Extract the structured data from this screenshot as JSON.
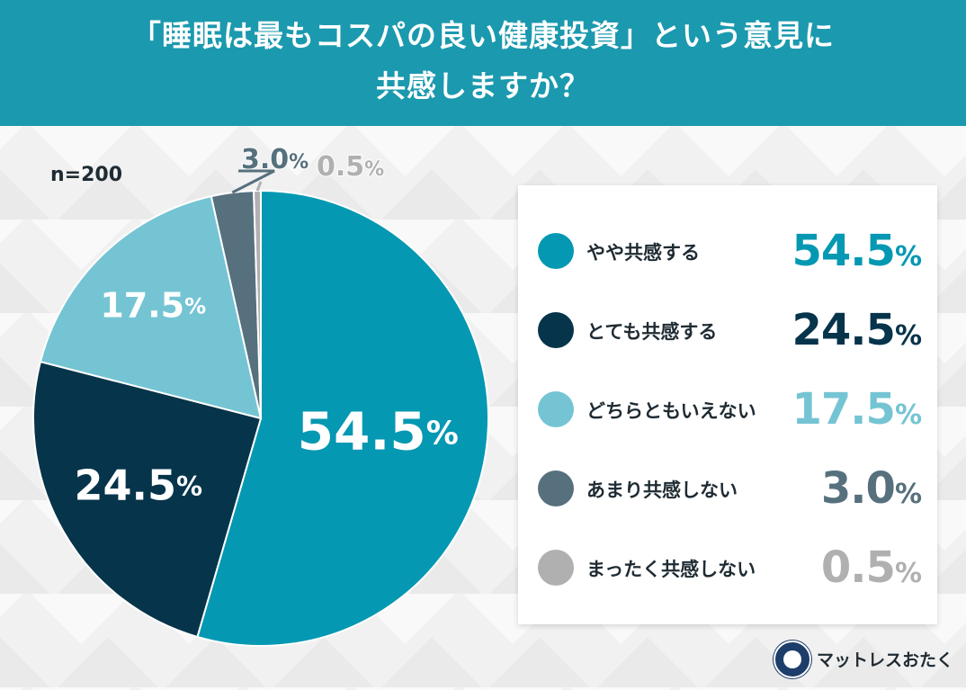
{
  "title": "「睡眠は最もコスパの良い健康投資」という意見に\n共感しますか？",
  "sample": "n=200",
  "brand": "マットレスおたく",
  "chart_data": {
    "type": "pie",
    "title": "「睡眠は最もコスパの良い健康投資」という意見に共感しますか？",
    "series": [
      {
        "name": "やや共感する",
        "value": 54.5,
        "label": "54.5",
        "color": "#0598b2"
      },
      {
        "name": "とても共感する",
        "value": 24.5,
        "label": "24.5",
        "color": "#06344b"
      },
      {
        "name": "どちらともいえない",
        "value": 17.5,
        "label": "17.5",
        "color": "#75c4d4"
      },
      {
        "name": "あまり共感しない",
        "value": 3.0,
        "label": "3.0",
        "color": "#56707d"
      },
      {
        "name": "まったく共感しない",
        "value": 0.5,
        "label": "0.5",
        "color": "#b0b0b0"
      }
    ],
    "unit": "%",
    "legend": "right"
  }
}
